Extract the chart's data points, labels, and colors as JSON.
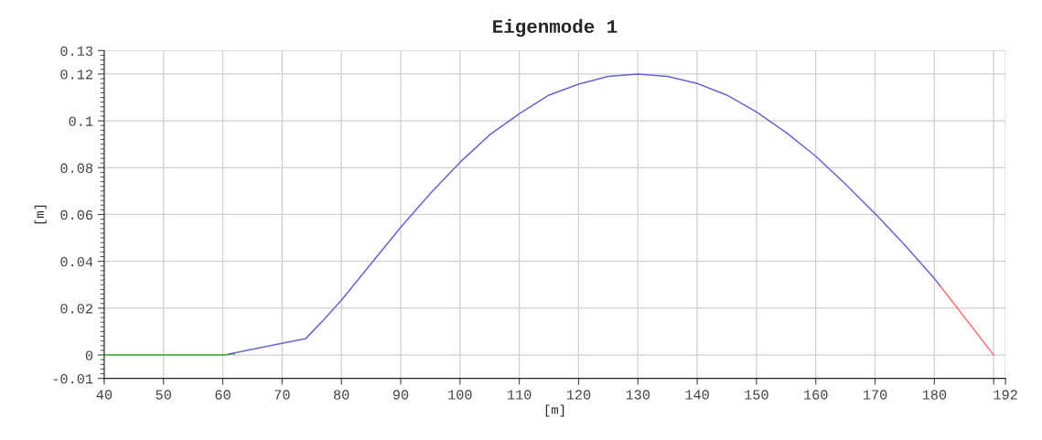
{
  "chart_data": {
    "type": "line",
    "title": "Eigenmode 1",
    "xlabel": "[m]",
    "ylabel": "[m]",
    "series": [
      {
        "color": "#33aa33",
        "x": [
          40,
          50,
          60,
          62
        ],
        "values": [
          0,
          0,
          0,
          0.0005
        ]
      },
      {
        "color": "#6666cc",
        "x": [
          61,
          66,
          70,
          74,
          77,
          80,
          85,
          90,
          95,
          100,
          105,
          110,
          115,
          120,
          125,
          130,
          135,
          140,
          145,
          150,
          155,
          160,
          165,
          170,
          175,
          180,
          181
        ],
        "values": [
          0.0004,
          0.003,
          0.005,
          0.007,
          0.015,
          0.0234,
          0.039,
          0.0545,
          0.069,
          0.0823,
          0.094,
          0.103,
          0.111,
          0.1157,
          0.119,
          0.12,
          0.119,
          0.116,
          0.111,
          0.1038,
          0.095,
          0.0849,
          0.073,
          0.0604,
          0.047,
          0.0327,
          0.0294
        ]
      },
      {
        "color": "#ee7777",
        "x": [
          181,
          190
        ],
        "values": [
          0.0294,
          0
        ]
      }
    ],
    "xlim": [
      40,
      192
    ],
    "xticks": [
      40,
      50,
      60,
      70,
      80,
      90,
      100,
      110,
      120,
      130,
      140,
      150,
      160,
      170,
      180,
      {
        "value": 190,
        "label": null
      },
      192
    ],
    "ylim": [
      -0.01,
      0.13
    ],
    "yticks": [
      -0.01,
      0,
      0.02,
      0.04,
      0.06,
      0.08,
      0.1,
      0.12,
      0.13
    ],
    "grid": true,
    "line_style": "solid",
    "marker": "none"
  }
}
